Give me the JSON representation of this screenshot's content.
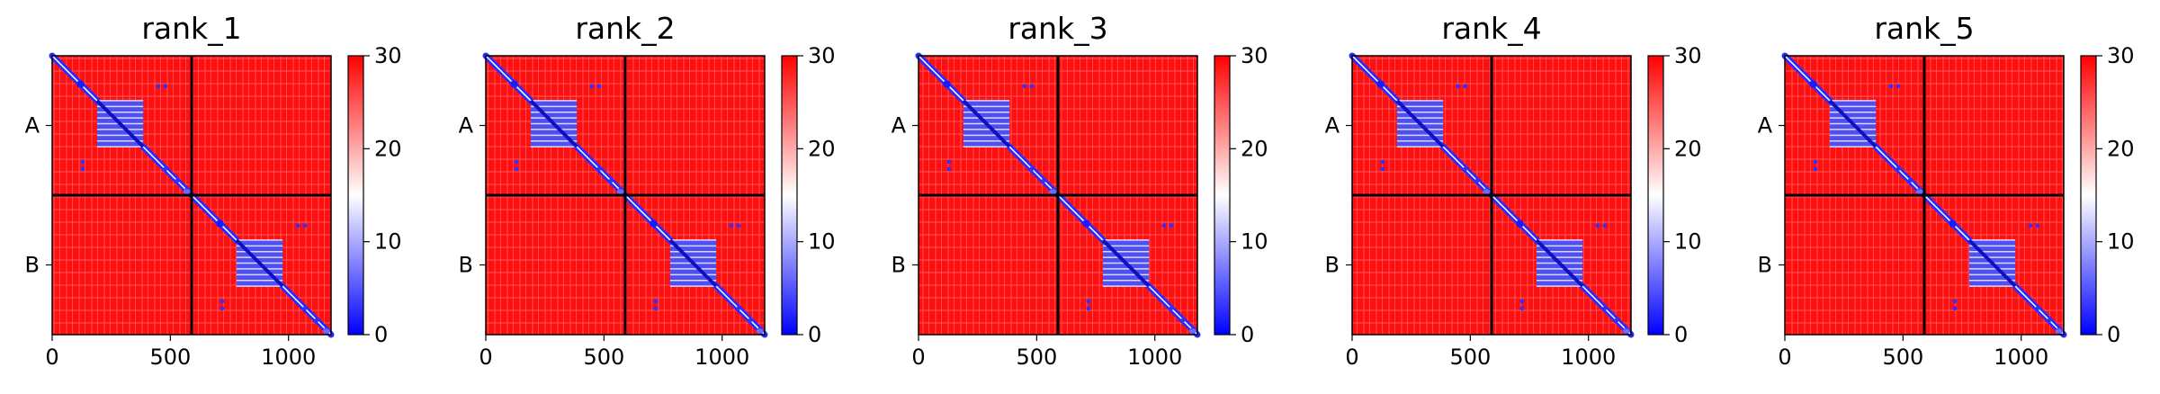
{
  "chart_data": [
    {
      "type": "heatmap",
      "title": "rank_1",
      "x_ticks": [
        "0",
        "500",
        "1000"
      ],
      "x_tick_values": [
        0,
        500,
        1000
      ],
      "y_tick_labels": [
        "A",
        "B"
      ],
      "chains": [
        {
          "name": "A",
          "length": 590
        },
        {
          "name": "B",
          "length": 590
        }
      ],
      "xlim": [
        0,
        1180
      ],
      "colorbar": {
        "min": 0,
        "max": 30,
        "ticks": [
          "0",
          "10",
          "20",
          "30"
        ],
        "colors": [
          "#0000ff",
          "#ffffff",
          "#ff0000"
        ]
      }
    },
    {
      "type": "heatmap",
      "title": "rank_2",
      "x_ticks": [
        "0",
        "500",
        "1000"
      ],
      "x_tick_values": [
        0,
        500,
        1000
      ],
      "y_tick_labels": [
        "A",
        "B"
      ],
      "chains": [
        {
          "name": "A",
          "length": 590
        },
        {
          "name": "B",
          "length": 590
        }
      ],
      "xlim": [
        0,
        1180
      ],
      "colorbar": {
        "min": 0,
        "max": 30,
        "ticks": [
          "0",
          "10",
          "20",
          "30"
        ],
        "colors": [
          "#0000ff",
          "#ffffff",
          "#ff0000"
        ]
      }
    },
    {
      "type": "heatmap",
      "title": "rank_3",
      "x_ticks": [
        "0",
        "500",
        "1000"
      ],
      "x_tick_values": [
        0,
        500,
        1000
      ],
      "y_tick_labels": [
        "A",
        "B"
      ],
      "chains": [
        {
          "name": "A",
          "length": 590
        },
        {
          "name": "B",
          "length": 590
        }
      ],
      "xlim": [
        0,
        1180
      ],
      "colorbar": {
        "min": 0,
        "max": 30,
        "ticks": [
          "0",
          "10",
          "20",
          "30"
        ],
        "colors": [
          "#0000ff",
          "#ffffff",
          "#ff0000"
        ]
      }
    },
    {
      "type": "heatmap",
      "title": "rank_4",
      "x_ticks": [
        "0",
        "500",
        "1000"
      ],
      "x_tick_values": [
        0,
        500,
        1000
      ],
      "y_tick_labels": [
        "A",
        "B"
      ],
      "chains": [
        {
          "name": "A",
          "length": 590
        },
        {
          "name": "B",
          "length": 590
        }
      ],
      "xlim": [
        0,
        1180
      ],
      "colorbar": {
        "min": 0,
        "max": 30,
        "ticks": [
          "0",
          "10",
          "20",
          "30"
        ],
        "colors": [
          "#0000ff",
          "#ffffff",
          "#ff0000"
        ]
      }
    },
    {
      "type": "heatmap",
      "title": "rank_5",
      "x_ticks": [
        "0",
        "500",
        "1000"
      ],
      "x_tick_values": [
        0,
        500,
        1000
      ],
      "y_tick_labels": [
        "A",
        "B"
      ],
      "chains": [
        {
          "name": "A",
          "length": 590
        },
        {
          "name": "B",
          "length": 590
        }
      ],
      "xlim": [
        0,
        1180
      ],
      "colorbar": {
        "min": 0,
        "max": 30,
        "ticks": [
          "0",
          "10",
          "20",
          "30"
        ],
        "colors": [
          "#0000ff",
          "#ffffff",
          "#ff0000"
        ]
      }
    }
  ]
}
